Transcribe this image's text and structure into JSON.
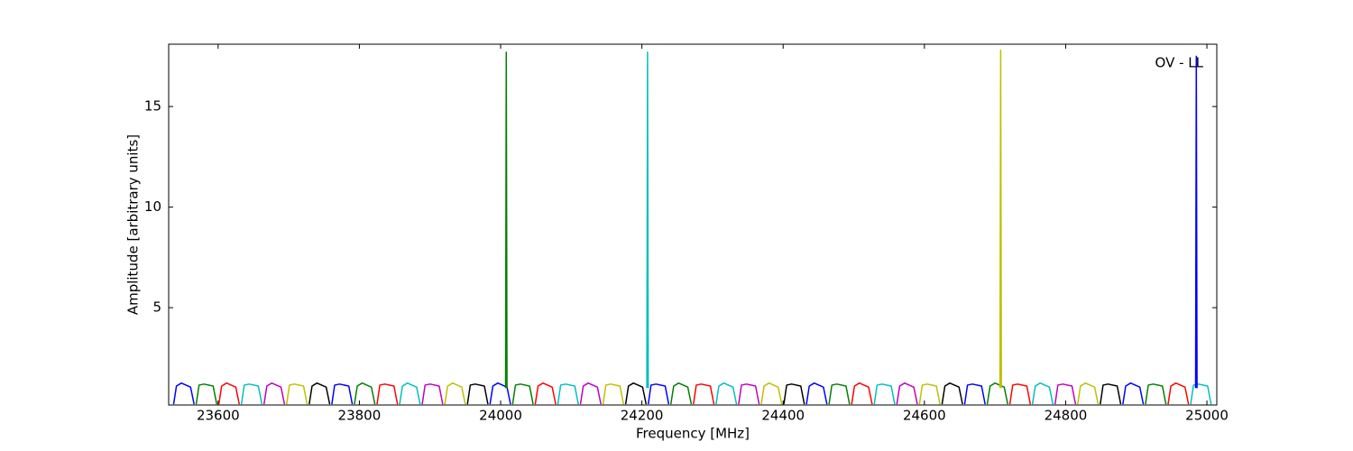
{
  "chart_data": {
    "type": "line",
    "annotation": "OV - LL",
    "x_label": "Frequency [MHz]",
    "y_label": "Amplitude [arbitrary units]",
    "xlim": [
      23530,
      25014
    ],
    "ylim": [
      0.16,
      18.1
    ],
    "xticks": [
      23600,
      23800,
      24000,
      24200,
      24400,
      24600,
      24800,
      25000
    ],
    "yticks": [
      5,
      10,
      15
    ],
    "series": [
      {
        "color": "#0000ff",
        "x": [
          23537,
          23541,
          23548,
          23561,
          23566
        ],
        "values": [
          0.2,
          1.1,
          1.25,
          1.05,
          0.2
        ]
      },
      {
        "color": "#008000",
        "x": [
          23569,
          23573,
          23580,
          23593,
          23598
        ],
        "values": [
          0.2,
          1.15,
          1.2,
          1.1,
          0.2
        ]
      },
      {
        "color": "#ff0000",
        "x": [
          23601,
          23605,
          23612,
          23625,
          23630
        ],
        "values": [
          0.2,
          1.1,
          1.25,
          1.05,
          0.2
        ]
      },
      {
        "color": "#00bfbf",
        "x": [
          23633,
          23637,
          23644,
          23657,
          23662
        ],
        "values": [
          0.2,
          1.15,
          1.2,
          1.1,
          0.2
        ]
      },
      {
        "color": "#bf00bf",
        "x": [
          23665,
          23669,
          23676,
          23689,
          23694
        ],
        "values": [
          0.2,
          1.1,
          1.25,
          1.05,
          0.2
        ]
      },
      {
        "color": "#bfbf00",
        "x": [
          23697,
          23701,
          23708,
          23721,
          23726
        ],
        "values": [
          0.2,
          1.15,
          1.2,
          1.1,
          0.2
        ]
      },
      {
        "color": "#000000",
        "x": [
          23729,
          23733,
          23740,
          23753,
          23758
        ],
        "values": [
          0.2,
          1.1,
          1.25,
          1.05,
          0.2
        ]
      },
      {
        "color": "#0000ff",
        "x": [
          23761,
          23765,
          23772,
          23785,
          23790
        ],
        "values": [
          0.2,
          1.15,
          1.2,
          1.1,
          0.2
        ]
      },
      {
        "color": "#008000",
        "x": [
          23793,
          23797,
          23804,
          23817,
          23822
        ],
        "values": [
          0.2,
          1.1,
          1.25,
          1.05,
          0.2
        ]
      },
      {
        "color": "#ff0000",
        "x": [
          23825,
          23829,
          23836,
          23849,
          23854
        ],
        "values": [
          0.2,
          1.15,
          1.2,
          1.1,
          0.2
        ]
      },
      {
        "color": "#00bfbf",
        "x": [
          23857,
          23861,
          23868,
          23881,
          23886
        ],
        "values": [
          0.2,
          1.1,
          1.25,
          1.05,
          0.2
        ]
      },
      {
        "color": "#bf00bf",
        "x": [
          23889,
          23893,
          23900,
          23913,
          23918
        ],
        "values": [
          0.2,
          1.15,
          1.2,
          1.1,
          0.2
        ]
      },
      {
        "color": "#bfbf00",
        "x": [
          23921,
          23925,
          23932,
          23945,
          23950
        ],
        "values": [
          0.2,
          1.1,
          1.25,
          1.05,
          0.2
        ]
      },
      {
        "color": "#000000",
        "x": [
          23953,
          23957,
          23964,
          23977,
          23982
        ],
        "values": [
          0.2,
          1.15,
          1.2,
          1.1,
          0.2
        ]
      },
      {
        "color": "#0000ff",
        "x": [
          23985,
          23989,
          23996,
          24009,
          24014
        ],
        "values": [
          0.2,
          1.1,
          1.25,
          1.05,
          0.2
        ]
      },
      {
        "color": "#008000",
        "x": [
          24017,
          24021,
          24028,
          24041,
          24046
        ],
        "values": [
          0.2,
          1.15,
          1.2,
          1.1,
          0.2
        ]
      },
      {
        "color": "#ff0000",
        "x": [
          24049,
          24053,
          24060,
          24073,
          24078
        ],
        "values": [
          0.2,
          1.1,
          1.25,
          1.05,
          0.2
        ]
      },
      {
        "color": "#00bfbf",
        "x": [
          24081,
          24085,
          24092,
          24105,
          24110
        ],
        "values": [
          0.2,
          1.15,
          1.2,
          1.1,
          0.2
        ]
      },
      {
        "color": "#bf00bf",
        "x": [
          24113,
          24117,
          24124,
          24137,
          24142
        ],
        "values": [
          0.2,
          1.1,
          1.25,
          1.05,
          0.2
        ]
      },
      {
        "color": "#bfbf00",
        "x": [
          24145,
          24149,
          24156,
          24169,
          24174
        ],
        "values": [
          0.2,
          1.15,
          1.2,
          1.1,
          0.2
        ]
      },
      {
        "color": "#000000",
        "x": [
          24177,
          24181,
          24188,
          24201,
          24206
        ],
        "values": [
          0.2,
          1.1,
          1.25,
          1.05,
          0.2
        ]
      },
      {
        "color": "#0000ff",
        "x": [
          24209,
          24213,
          24220,
          24233,
          24238
        ],
        "values": [
          0.2,
          1.15,
          1.2,
          1.1,
          0.2
        ]
      },
      {
        "color": "#008000",
        "x": [
          24241,
          24245,
          24252,
          24265,
          24270
        ],
        "values": [
          0.2,
          1.1,
          1.25,
          1.05,
          0.2
        ]
      },
      {
        "color": "#ff0000",
        "x": [
          24273,
          24277,
          24284,
          24297,
          24302
        ],
        "values": [
          0.2,
          1.15,
          1.2,
          1.1,
          0.2
        ]
      },
      {
        "color": "#00bfbf",
        "x": [
          24305,
          24309,
          24316,
          24329,
          24334
        ],
        "values": [
          0.2,
          1.1,
          1.25,
          1.05,
          0.2
        ]
      },
      {
        "color": "#bf00bf",
        "x": [
          24337,
          24341,
          24348,
          24361,
          24366
        ],
        "values": [
          0.2,
          1.15,
          1.2,
          1.1,
          0.2
        ]
      },
      {
        "color": "#bfbf00",
        "x": [
          24369,
          24373,
          24380,
          24393,
          24398
        ],
        "values": [
          0.2,
          1.1,
          1.25,
          1.05,
          0.2
        ]
      },
      {
        "color": "#000000",
        "x": [
          24401,
          24405,
          24412,
          24425,
          24430
        ],
        "values": [
          0.2,
          1.15,
          1.2,
          1.1,
          0.2
        ]
      },
      {
        "color": "#0000ff",
        "x": [
          24433,
          24437,
          24444,
          24457,
          24462
        ],
        "values": [
          0.2,
          1.1,
          1.25,
          1.05,
          0.2
        ]
      },
      {
        "color": "#008000",
        "x": [
          24465,
          24469,
          24476,
          24489,
          24494
        ],
        "values": [
          0.2,
          1.15,
          1.2,
          1.1,
          0.2
        ]
      },
      {
        "color": "#ff0000",
        "x": [
          24497,
          24501,
          24508,
          24521,
          24526
        ],
        "values": [
          0.2,
          1.1,
          1.25,
          1.05,
          0.2
        ]
      },
      {
        "color": "#00bfbf",
        "x": [
          24529,
          24533,
          24540,
          24553,
          24558
        ],
        "values": [
          0.2,
          1.15,
          1.2,
          1.1,
          0.2
        ]
      },
      {
        "color": "#bf00bf",
        "x": [
          24561,
          24565,
          24572,
          24585,
          24590
        ],
        "values": [
          0.2,
          1.1,
          1.25,
          1.05,
          0.2
        ]
      },
      {
        "color": "#bfbf00",
        "x": [
          24593,
          24597,
          24604,
          24617,
          24622
        ],
        "values": [
          0.2,
          1.15,
          1.2,
          1.1,
          0.2
        ]
      },
      {
        "color": "#000000",
        "x": [
          24625,
          24629,
          24636,
          24649,
          24654
        ],
        "values": [
          0.2,
          1.1,
          1.25,
          1.05,
          0.2
        ]
      },
      {
        "color": "#0000ff",
        "x": [
          24657,
          24661,
          24668,
          24681,
          24686
        ],
        "values": [
          0.2,
          1.15,
          1.2,
          1.1,
          0.2
        ]
      },
      {
        "color": "#008000",
        "x": [
          24689,
          24693,
          24700,
          24713,
          24718
        ],
        "values": [
          0.2,
          1.1,
          1.25,
          1.05,
          0.2
        ]
      },
      {
        "color": "#ff0000",
        "x": [
          24721,
          24725,
          24732,
          24745,
          24750
        ],
        "values": [
          0.2,
          1.15,
          1.2,
          1.1,
          0.2
        ]
      },
      {
        "color": "#00bfbf",
        "x": [
          24753,
          24757,
          24764,
          24777,
          24782
        ],
        "values": [
          0.2,
          1.1,
          1.25,
          1.05,
          0.2
        ]
      },
      {
        "color": "#bf00bf",
        "x": [
          24785,
          24789,
          24796,
          24809,
          24814
        ],
        "values": [
          0.2,
          1.15,
          1.2,
          1.1,
          0.2
        ]
      },
      {
        "color": "#bfbf00",
        "x": [
          24817,
          24821,
          24828,
          24841,
          24846
        ],
        "values": [
          0.2,
          1.1,
          1.25,
          1.05,
          0.2
        ]
      },
      {
        "color": "#000000",
        "x": [
          24849,
          24853,
          24860,
          24873,
          24878
        ],
        "values": [
          0.2,
          1.15,
          1.2,
          1.1,
          0.2
        ]
      },
      {
        "color": "#0000ff",
        "x": [
          24881,
          24885,
          24892,
          24905,
          24910
        ],
        "values": [
          0.2,
          1.1,
          1.25,
          1.05,
          0.2
        ]
      },
      {
        "color": "#008000",
        "x": [
          24913,
          24917,
          24924,
          24937,
          24942
        ],
        "values": [
          0.2,
          1.15,
          1.2,
          1.1,
          0.2
        ]
      },
      {
        "color": "#ff0000",
        "x": [
          24945,
          24949,
          24956,
          24969,
          24974
        ],
        "values": [
          0.2,
          1.1,
          1.25,
          1.05,
          0.2
        ]
      },
      {
        "color": "#00bfbf",
        "x": [
          24977,
          24981,
          24988,
          25001,
          25006
        ],
        "values": [
          0.2,
          1.15,
          1.2,
          1.1,
          0.2
        ]
      },
      {
        "color": "#008000",
        "x": [
          24007,
          24008,
          24009
        ],
        "values": [
          1.0,
          17.7,
          1.0
        ]
      },
      {
        "color": "#00bfbf",
        "x": [
          24207,
          24208,
          24209
        ],
        "values": [
          1.0,
          17.7,
          1.0
        ]
      },
      {
        "color": "#bfbf00",
        "x": [
          24707,
          24708,
          24709
        ],
        "values": [
          1.0,
          17.8,
          1.0
        ]
      },
      {
        "color": "#0000ff",
        "x": [
          24984,
          24985,
          24986
        ],
        "values": [
          1.0,
          17.5,
          1.0
        ]
      }
    ]
  }
}
